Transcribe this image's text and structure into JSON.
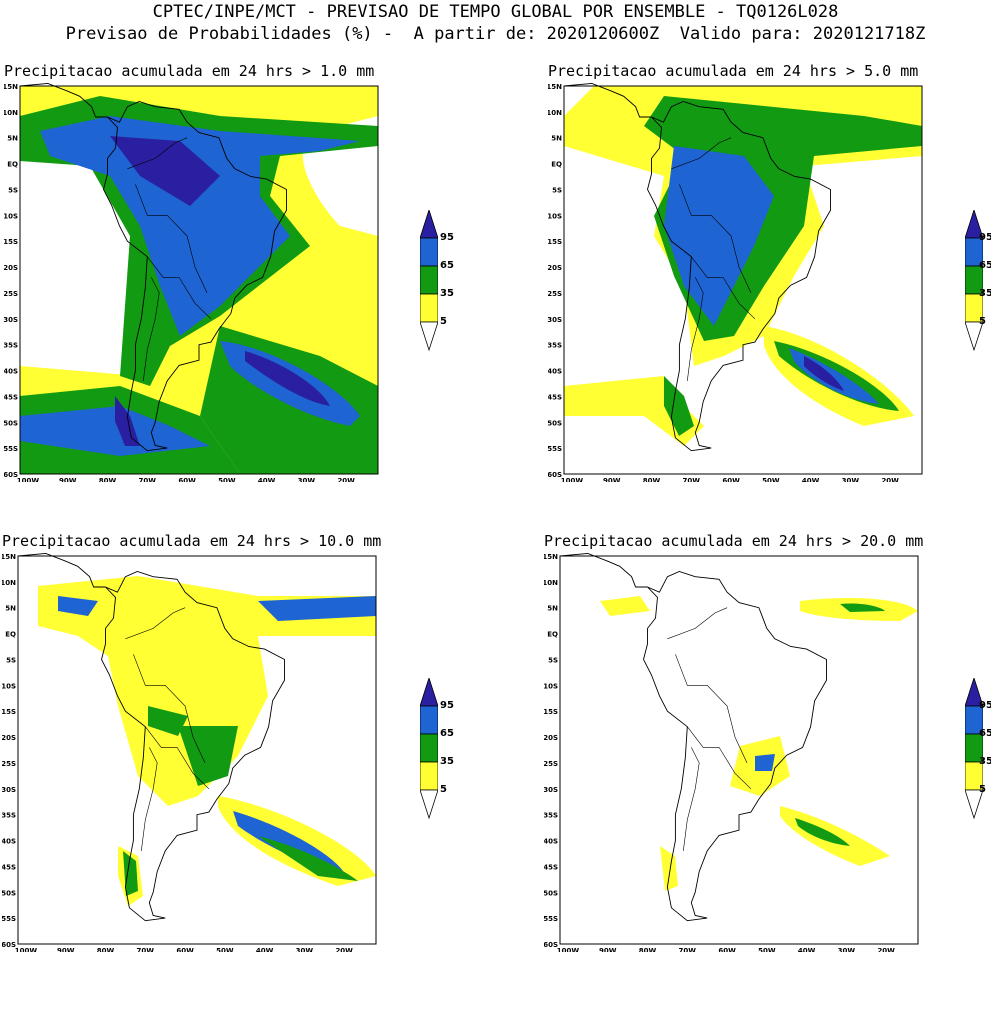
{
  "header": {
    "line1": "CPTEC/INPE/MCT - PREVISAO DE TEMPO GLOBAL POR ENSEMBLE - TQ0126L028",
    "line2": "Previsao de Probabilidades (%) -  A partir de: 2020120600Z  Valido para: 2020121718Z"
  },
  "lat_labels": [
    "15N",
    "10N",
    "5N",
    "EQ",
    "5S",
    "10S",
    "15S",
    "20S",
    "25S",
    "30S",
    "35S",
    "40S",
    "45S",
    "50S",
    "55S",
    "60S"
  ],
  "lon_labels": [
    "100W",
    "90W",
    "80W",
    "70W",
    "60W",
    "50W",
    "40W",
    "30W",
    "20W"
  ],
  "colorbar": {
    "levels": [
      "95",
      "65",
      "35",
      "5"
    ],
    "colors": {
      "c5": "#ffff33",
      "c35": "#129a12",
      "c65": "#1e64d2",
      "c95": "#2a1fa0",
      "coast": "#000000",
      "background": "#ffffff"
    }
  },
  "panels": [
    {
      "id": "p1",
      "title": "Precipitacao acumulada em 24 hrs > 1.0 mm",
      "threshold_mm": 1.0
    },
    {
      "id": "p2",
      "title": "Precipitacao acumulada em 24 hrs > 5.0 mm",
      "threshold_mm": 5.0
    },
    {
      "id": "p3",
      "title": "Precipitacao acumulada em 24 hrs > 10.0 mm",
      "threshold_mm": 10.0
    },
    {
      "id": "p4",
      "title": "Precipitacao acumulada em 24 hrs > 20.0 mm",
      "threshold_mm": 20.0
    }
  ]
}
